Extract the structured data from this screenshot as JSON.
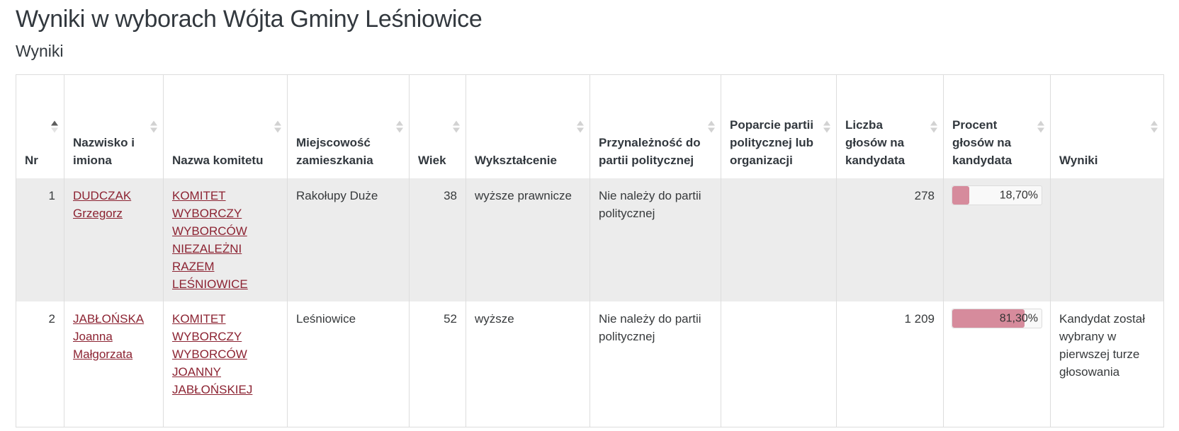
{
  "page": {
    "title": "Wyniki w wyborach Wójta Gminy Leśniowice",
    "subtitle": "Wyniki"
  },
  "table": {
    "columns": [
      {
        "label": "Nr",
        "sort": "asc"
      },
      {
        "label": "Nazwisko i imiona",
        "sort": "none"
      },
      {
        "label": "Nazwa komitetu",
        "sort": "none"
      },
      {
        "label": "Miejscowość zamieszkania",
        "sort": "none"
      },
      {
        "label": "Wiek",
        "sort": "none"
      },
      {
        "label": "Wykształcenie",
        "sort": "none"
      },
      {
        "label": "Przynależność do partii politycznej",
        "sort": "none"
      },
      {
        "label": "Poparcie partii politycznej lub organizacji",
        "sort": "none"
      },
      {
        "label": "Liczba głosów na kandydata",
        "sort": "none"
      },
      {
        "label": "Procent głosów na kandydata",
        "sort": "none"
      },
      {
        "label": "Wyniki",
        "sort": "none"
      }
    ],
    "rows": [
      {
        "nr": "1",
        "name": "DUDCZAK Grzegorz",
        "committee": "KOMITET WYBORCZY WYBORCÓW NIEZALEŻNI RAZEM LEŚNIOWICE",
        "residence": "Rakołupy Duże",
        "age": "38",
        "education": "wyższe prawnicze",
        "party_affiliation": "Nie należy do partii politycznej",
        "party_support": "",
        "votes": "278",
        "percent_label": "18,70%",
        "percent_value": 18.7,
        "result": ""
      },
      {
        "nr": "2",
        "name": "JABŁOŃSKA Joanna Małgorzata",
        "committee": "KOMITET WYBORCZY WYBORCÓW JOANNY JABŁOŃSKIEJ",
        "residence": "Leśniowice",
        "age": "52",
        "education": "wyższe",
        "party_affiliation": "Nie należy do partii politycznej",
        "party_support": "",
        "votes": "1 209",
        "percent_label": "81,30%",
        "percent_value": 81.3,
        "result": "Kandydat został wybrany w pierwszej turze głosowania"
      }
    ]
  },
  "colors": {
    "link": "#8c2332",
    "bar_fill": "#d68b9c",
    "row_shade": "#ececec",
    "table_border": "#dddddd",
    "sort_icon_inactive": "#d2d2d2",
    "sort_icon_active": "#5d5d5d"
  }
}
